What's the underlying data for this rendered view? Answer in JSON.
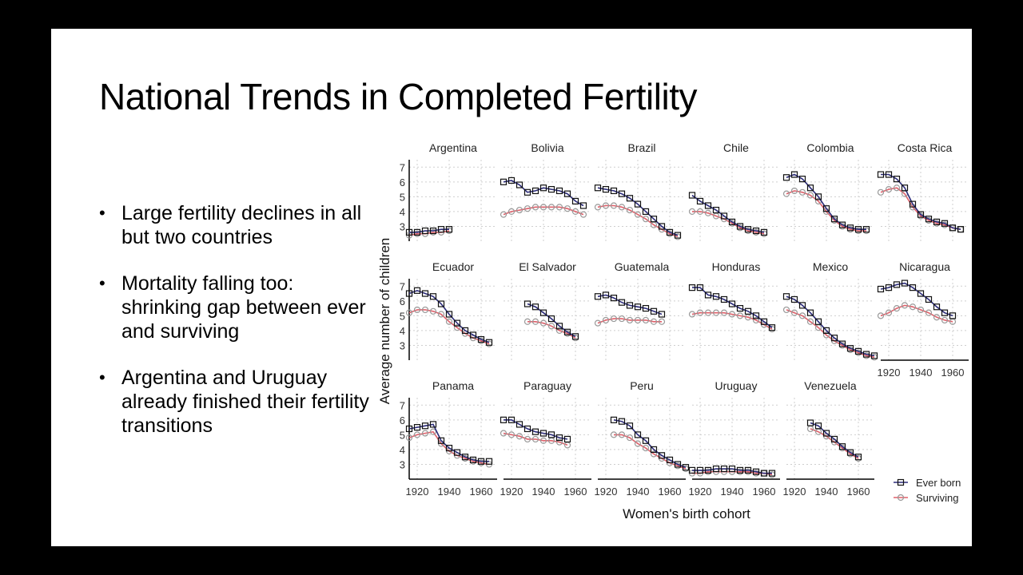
{
  "slide": {
    "title": "National Trends in Completed Fertility",
    "bullets": [
      "Large fertility declines in all but two countries",
      "Mortality falling too: shrinking gap between ever and surviving",
      "Argentina and Uruguay already finished their fertility transitions"
    ]
  },
  "colors": {
    "ever_born": "#2b2b7a",
    "surviving": "#e0606a",
    "background": "#000000",
    "slide": "#ffffff"
  },
  "chart_data": {
    "type": "line",
    "layout": "small-multiples facet grid (3 rows x 6 columns)",
    "xlabel": "Women's birth cohort",
    "ylabel": "Average number of children",
    "xlim": [
      1915,
      1970
    ],
    "ylim": [
      2,
      7.5
    ],
    "xticks": [
      1920,
      1940,
      1960
    ],
    "xtick_labels": [
      "1920",
      "1940",
      "1960"
    ],
    "yticks": [
      3,
      4,
      5,
      6,
      7
    ],
    "ytick_labels": [
      "3",
      "4",
      "5",
      "6",
      "7"
    ],
    "legend": {
      "position": "bottom-right",
      "entries": [
        "Ever born",
        "Surviving"
      ]
    },
    "grid": true,
    "series_names": [
      "Ever born",
      "Surviving"
    ],
    "facets": [
      {
        "country": "Argentina",
        "x": [
          1915,
          1920,
          1925,
          1930,
          1935,
          1940
        ],
        "ever_born": [
          2.6,
          2.6,
          2.7,
          2.7,
          2.8,
          2.8
        ],
        "surviving": [
          2.4,
          2.5,
          2.5,
          2.6,
          2.6,
          2.7
        ]
      },
      {
        "country": "Bolivia",
        "x": [
          1915,
          1920,
          1925,
          1930,
          1935,
          1940,
          1945,
          1950,
          1955,
          1960,
          1965
        ],
        "ever_born": [
          6.0,
          6.1,
          5.8,
          5.3,
          5.4,
          5.6,
          5.5,
          5.4,
          5.2,
          4.7,
          4.4
        ],
        "surviving": [
          3.8,
          4.0,
          4.1,
          4.2,
          4.3,
          4.3,
          4.3,
          4.3,
          4.2,
          4.0,
          3.8
        ]
      },
      {
        "country": "Brazil",
        "x": [
          1915,
          1920,
          1925,
          1930,
          1935,
          1940,
          1945,
          1950,
          1955,
          1960,
          1965
        ],
        "ever_born": [
          5.6,
          5.5,
          5.4,
          5.2,
          4.9,
          4.5,
          4.0,
          3.5,
          3.0,
          2.6,
          2.4
        ],
        "surviving": [
          4.3,
          4.4,
          4.4,
          4.3,
          4.1,
          3.8,
          3.5,
          3.1,
          2.8,
          2.5,
          2.3
        ]
      },
      {
        "country": "Chile",
        "x": [
          1915,
          1920,
          1925,
          1930,
          1935,
          1940,
          1945,
          1950,
          1955,
          1960
        ],
        "ever_born": [
          5.1,
          4.7,
          4.4,
          4.1,
          3.7,
          3.3,
          3.0,
          2.8,
          2.7,
          2.6
        ],
        "surviving": [
          4.0,
          4.0,
          3.9,
          3.7,
          3.5,
          3.2,
          2.9,
          2.7,
          2.6,
          2.5
        ]
      },
      {
        "country": "Colombia",
        "x": [
          1915,
          1920,
          1925,
          1930,
          1935,
          1940,
          1945,
          1950,
          1955,
          1960,
          1965
        ],
        "ever_born": [
          6.3,
          6.5,
          6.2,
          5.6,
          5.0,
          4.2,
          3.5,
          3.1,
          2.9,
          2.8,
          2.8
        ],
        "surviving": [
          5.2,
          5.4,
          5.3,
          5.1,
          4.7,
          4.0,
          3.4,
          3.0,
          2.8,
          2.7,
          2.7
        ]
      },
      {
        "country": "Costa Rica",
        "x": [
          1915,
          1920,
          1925,
          1930,
          1935,
          1940,
          1945,
          1950,
          1955,
          1960,
          1965
        ],
        "ever_born": [
          6.5,
          6.5,
          6.2,
          5.6,
          4.5,
          3.8,
          3.5,
          3.3,
          3.2,
          2.9,
          2.8
        ],
        "surviving": [
          5.3,
          5.5,
          5.6,
          5.2,
          4.3,
          3.7,
          3.4,
          3.2,
          3.1,
          2.9,
          2.8
        ]
      },
      {
        "country": "Ecuador",
        "x": [
          1915,
          1920,
          1925,
          1930,
          1935,
          1940,
          1945,
          1950,
          1955,
          1960,
          1965
        ],
        "ever_born": [
          6.5,
          6.7,
          6.5,
          6.3,
          5.8,
          5.1,
          4.5,
          4.0,
          3.7,
          3.4,
          3.2
        ],
        "surviving": [
          5.2,
          5.4,
          5.4,
          5.3,
          5.1,
          4.6,
          4.2,
          3.8,
          3.5,
          3.3,
          3.1
        ]
      },
      {
        "country": "El Salvador",
        "x": [
          1930,
          1935,
          1940,
          1945,
          1950,
          1955,
          1960
        ],
        "ever_born": [
          5.8,
          5.6,
          5.2,
          4.8,
          4.3,
          3.9,
          3.6
        ],
        "surviving": [
          4.6,
          4.6,
          4.5,
          4.3,
          4.0,
          3.8,
          3.5
        ]
      },
      {
        "country": "Guatemala",
        "x": [
          1915,
          1920,
          1925,
          1930,
          1935,
          1940,
          1945,
          1950,
          1955
        ],
        "ever_born": [
          6.3,
          6.4,
          6.2,
          5.9,
          5.7,
          5.6,
          5.5,
          5.3,
          5.1
        ],
        "surviving": [
          4.5,
          4.7,
          4.8,
          4.8,
          4.7,
          4.7,
          4.7,
          4.6,
          4.6
        ]
      },
      {
        "country": "Honduras",
        "x": [
          1915,
          1920,
          1925,
          1930,
          1935,
          1940,
          1945,
          1950,
          1955,
          1960,
          1965
        ],
        "ever_born": [
          6.9,
          6.9,
          6.4,
          6.3,
          6.1,
          5.8,
          5.5,
          5.3,
          5.0,
          4.6,
          4.2
        ],
        "surviving": [
          5.1,
          5.2,
          5.2,
          5.2,
          5.2,
          5.1,
          5.0,
          4.9,
          4.7,
          4.4,
          4.1
        ]
      },
      {
        "country": "Mexico",
        "x": [
          1915,
          1920,
          1925,
          1930,
          1935,
          1940,
          1945,
          1950,
          1955,
          1960,
          1965,
          1970
        ],
        "ever_born": [
          6.3,
          6.1,
          5.7,
          5.2,
          4.6,
          4.0,
          3.5,
          3.1,
          2.8,
          2.6,
          2.4,
          2.3
        ],
        "surviving": [
          5.4,
          5.2,
          5.0,
          4.6,
          4.2,
          3.7,
          3.3,
          3.0,
          2.7,
          2.5,
          2.3,
          2.2
        ]
      },
      {
        "country": "Nicaragua",
        "x": [
          1915,
          1920,
          1925,
          1930,
          1935,
          1940,
          1945,
          1950,
          1955,
          1960
        ],
        "ever_born": [
          6.8,
          6.9,
          7.1,
          7.2,
          6.9,
          6.5,
          6.1,
          5.6,
          5.2,
          5.0
        ],
        "surviving": [
          5.0,
          5.2,
          5.5,
          5.7,
          5.6,
          5.4,
          5.2,
          4.9,
          4.7,
          4.6
        ]
      },
      {
        "country": "Panama",
        "x": [
          1915,
          1920,
          1925,
          1930,
          1935,
          1940,
          1945,
          1950,
          1955,
          1960,
          1965
        ],
        "ever_born": [
          5.4,
          5.5,
          5.6,
          5.7,
          4.6,
          4.1,
          3.8,
          3.5,
          3.3,
          3.2,
          3.2
        ],
        "surviving": [
          4.8,
          5.0,
          5.1,
          5.2,
          4.4,
          3.9,
          3.6,
          3.4,
          3.2,
          3.1,
          3.0
        ]
      },
      {
        "country": "Paraguay",
        "x": [
          1915,
          1920,
          1925,
          1930,
          1935,
          1940,
          1945,
          1950,
          1955
        ],
        "ever_born": [
          6.0,
          6.0,
          5.7,
          5.4,
          5.2,
          5.1,
          5.0,
          4.8,
          4.7
        ],
        "surviving": [
          5.1,
          5.0,
          4.9,
          4.7,
          4.7,
          4.6,
          4.6,
          4.5,
          4.3
        ]
      },
      {
        "country": "Peru",
        "x": [
          1925,
          1930,
          1935,
          1940,
          1945,
          1950,
          1955,
          1960,
          1965,
          1970
        ],
        "ever_born": [
          6.0,
          5.9,
          5.6,
          5.0,
          4.6,
          4.0,
          3.6,
          3.3,
          3.0,
          2.8
        ],
        "surviving": [
          5.0,
          5.0,
          4.8,
          4.4,
          4.1,
          3.7,
          3.4,
          3.1,
          2.9,
          2.7
        ]
      },
      {
        "country": "Uruguay",
        "x": [
          1915,
          1920,
          1925,
          1930,
          1935,
          1940,
          1945,
          1950,
          1955,
          1960,
          1965
        ],
        "ever_born": [
          2.6,
          2.6,
          2.6,
          2.7,
          2.7,
          2.7,
          2.6,
          2.6,
          2.5,
          2.4,
          2.4
        ],
        "surviving": [
          2.4,
          2.4,
          2.5,
          2.5,
          2.5,
          2.5,
          2.5,
          2.5,
          2.4,
          2.4,
          2.3
        ]
      },
      {
        "country": "Venezuela",
        "x": [
          1930,
          1935,
          1940,
          1945,
          1950,
          1955,
          1960
        ],
        "ever_born": [
          5.8,
          5.6,
          5.1,
          4.7,
          4.2,
          3.8,
          3.5
        ],
        "surviving": [
          5.4,
          5.2,
          4.9,
          4.5,
          4.1,
          3.7,
          3.4
        ]
      }
    ]
  }
}
